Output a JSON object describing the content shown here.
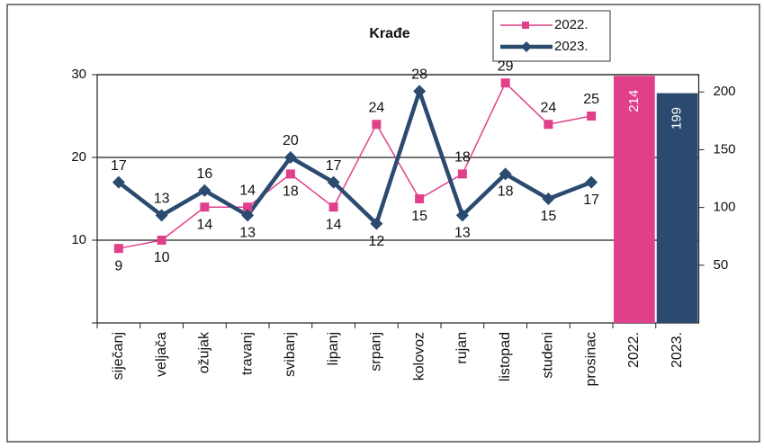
{
  "chart_data": {
    "type": "line",
    "title": "Krađe",
    "categories": [
      "siječanj",
      "veljača",
      "ožujak",
      "travanj",
      "svibanj",
      "lipanj",
      "srpanj",
      "kolovoz",
      "rujan",
      "listopad",
      "studeni",
      "prosinac",
      "2022.",
      "2023."
    ],
    "series": [
      {
        "name": "2022.",
        "color": "#e0408a",
        "values": [
          9,
          10,
          14,
          14,
          18,
          14,
          24,
          15,
          18,
          29,
          24,
          25,
          null,
          null
        ]
      },
      {
        "name": "2023.",
        "color": "#2b4a6f",
        "values": [
          17,
          13,
          16,
          13,
          20,
          17,
          12,
          28,
          13,
          18,
          15,
          17,
          null,
          null
        ]
      },
      {
        "type": "bar",
        "axis": "y2",
        "colors": [
          "#e0408a",
          "#2b4a6f"
        ],
        "values": [
          null,
          null,
          null,
          null,
          null,
          null,
          null,
          null,
          null,
          null,
          null,
          null,
          214,
          199
        ]
      }
    ],
    "ylim": [
      0,
      30
    ],
    "yticks": [
      10,
      20,
      30
    ],
    "y2lim": [
      0,
      215
    ],
    "y2ticks": [
      50,
      100,
      150,
      200
    ],
    "grid": true,
    "legend": "top-right"
  }
}
